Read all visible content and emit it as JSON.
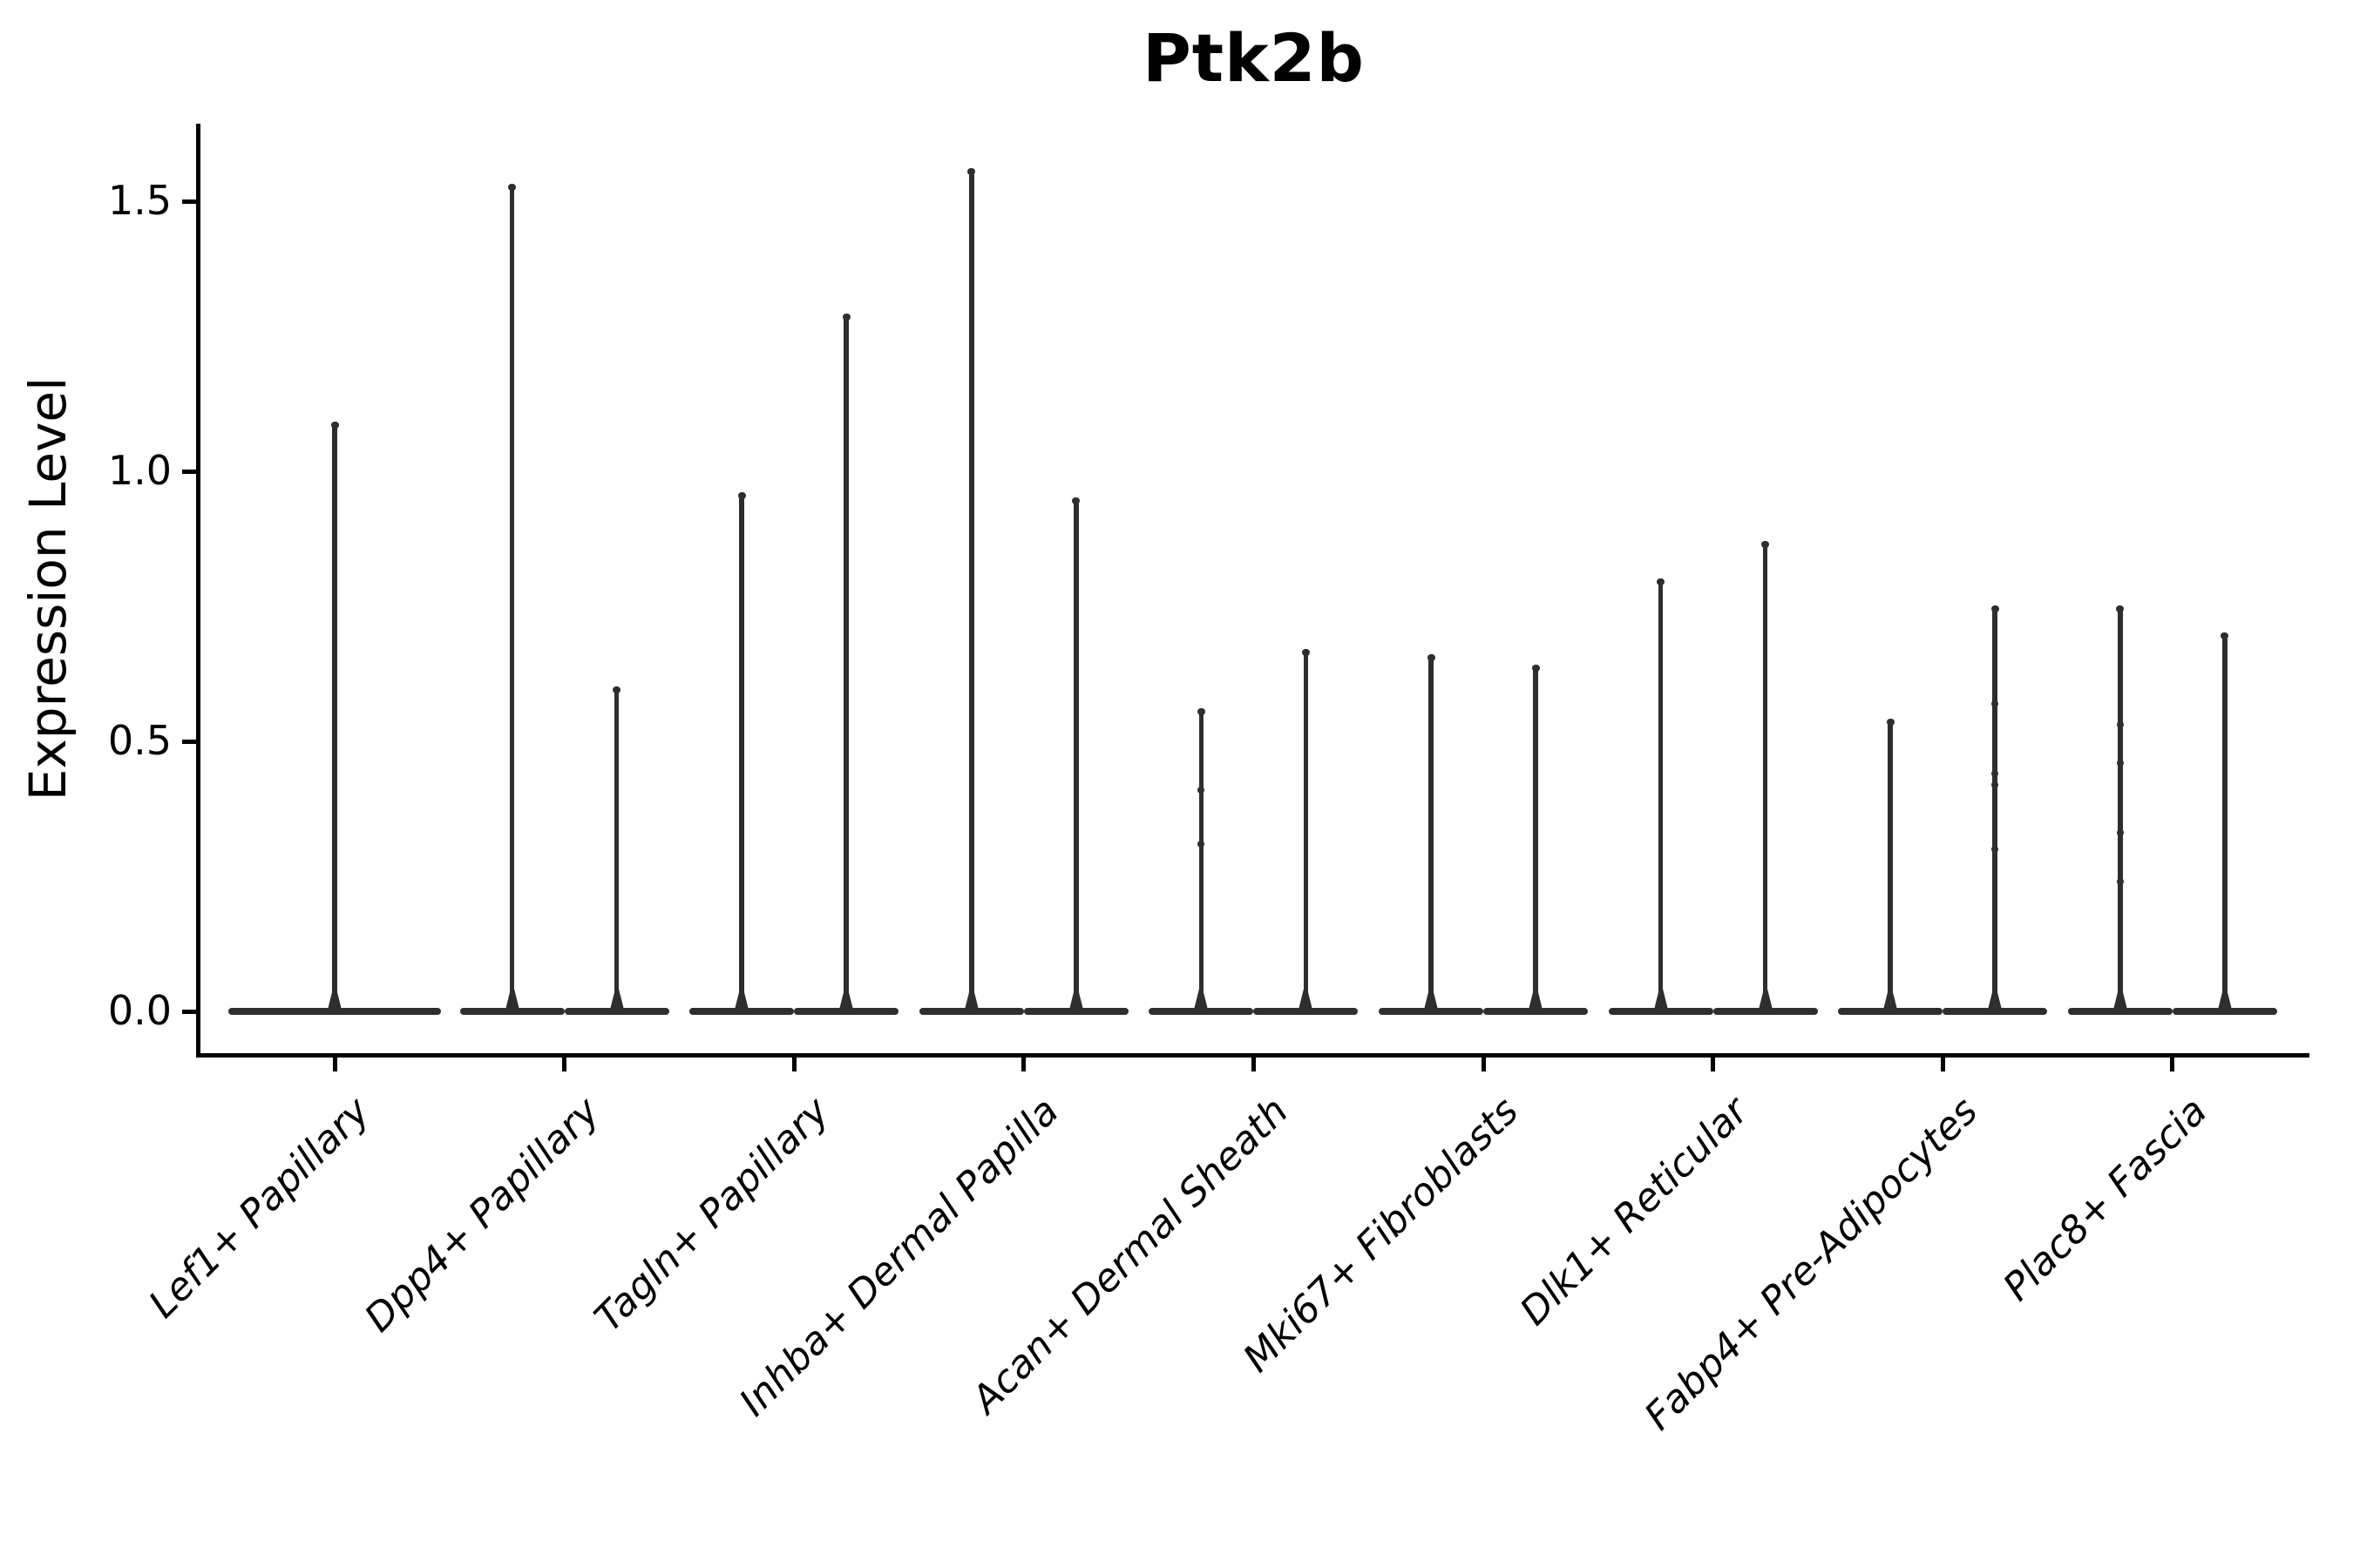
{
  "figure": {
    "background": "#ffffff"
  },
  "chart_data": {
    "type": "violin",
    "title": "Ptk2b",
    "xlabel": "",
    "ylabel": "Expression Level",
    "ylim": [
      -0.08,
      1.64
    ],
    "yticks": [
      0.0,
      0.5,
      1.0,
      1.5
    ],
    "ytick_labels": [
      "0.0",
      "0.5",
      "1.0",
      "1.5"
    ],
    "grid": false,
    "legend": "none",
    "x_tick_rotation_deg": 45,
    "x_tick_style": "italic",
    "categories": [
      "Lef1+ Papillary",
      "Dpp4+ Papillary",
      "Tagln+ Papillary",
      "Inhba+ Dermal Papilla",
      "Acan+ Dermal Sheath",
      "Mki67+ Fibroblasts",
      "Dlk1+ Reticular",
      "Fabp4+ Pre-Adipocytes",
      "Plac8+ Fascia"
    ],
    "groups": [
      {
        "category": "Lef1+ Papillary",
        "violins": [
          {
            "side": "full",
            "max": 1.09,
            "beads": []
          }
        ]
      },
      {
        "category": "Dpp4+ Papillary",
        "violins": [
          {
            "side": "left",
            "max": 1.53,
            "beads": []
          },
          {
            "side": "right",
            "max": 0.6,
            "beads": []
          }
        ]
      },
      {
        "category": "Tagln+ Papillary",
        "violins": [
          {
            "side": "left",
            "max": 0.96,
            "beads": []
          },
          {
            "side": "right",
            "max": 1.29,
            "beads": []
          }
        ]
      },
      {
        "category": "Inhba+ Dermal Papilla",
        "violins": [
          {
            "side": "left",
            "max": 1.56,
            "beads": []
          },
          {
            "side": "right",
            "max": 0.95,
            "beads": []
          }
        ]
      },
      {
        "category": "Acan+ Dermal Sheath",
        "violins": [
          {
            "side": "left",
            "max": 0.56,
            "beads": [
              0.31,
              0.41
            ]
          },
          {
            "side": "right",
            "max": 0.67,
            "beads": []
          }
        ]
      },
      {
        "category": "Mki67+ Fibroblasts",
        "violins": [
          {
            "side": "left",
            "max": 0.66,
            "beads": []
          },
          {
            "side": "right",
            "max": 0.64,
            "beads": []
          }
        ]
      },
      {
        "category": "Dlk1+ Reticular",
        "violins": [
          {
            "side": "left",
            "max": 0.8,
            "beads": []
          },
          {
            "side": "right",
            "max": 0.87,
            "beads": []
          }
        ]
      },
      {
        "category": "Fabp4+ Pre-Adipocytes",
        "violins": [
          {
            "side": "left",
            "max": 0.54,
            "beads": []
          },
          {
            "side": "right",
            "max": 0.75,
            "beads": [
              0.3,
              0.42,
              0.44,
              0.57
            ]
          }
        ]
      },
      {
        "category": "Plac8+ Fascia",
        "violins": [
          {
            "side": "left",
            "max": 0.75,
            "beads": [
              0.24,
              0.33,
              0.46,
              0.53
            ]
          },
          {
            "side": "right",
            "max": 0.7,
            "beads": []
          }
        ]
      }
    ],
    "colors": {
      "violin": "#2e2e2e",
      "axis": "#000000",
      "text": "#000000",
      "background": "#ffffff"
    }
  }
}
